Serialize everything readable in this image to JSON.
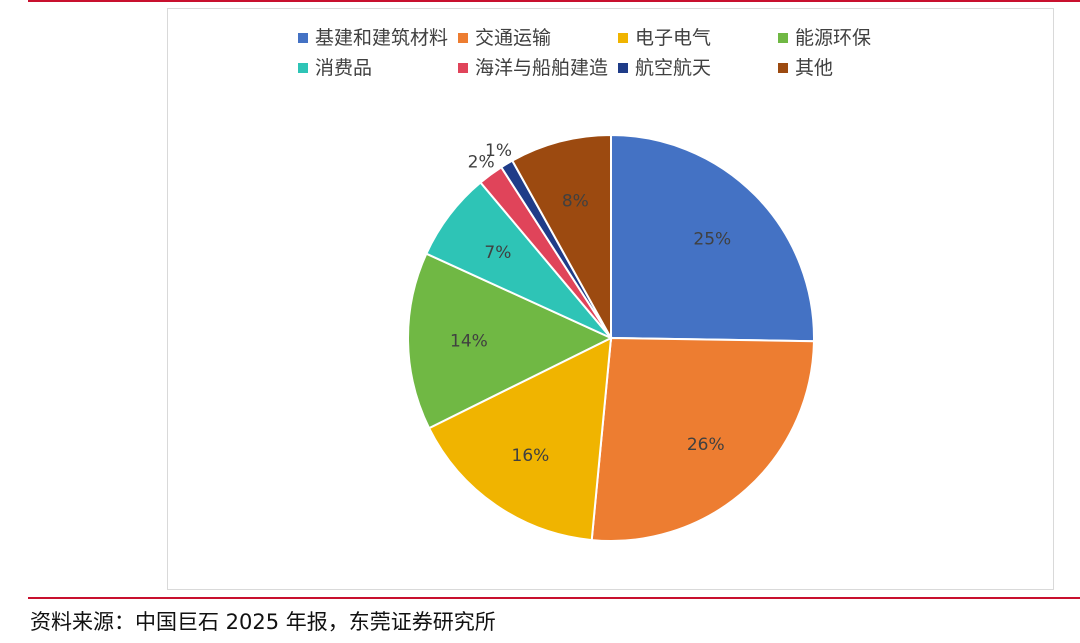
{
  "chart_data": {
    "type": "pie",
    "categories": [
      "基建和建筑材料",
      "交通运输",
      "电子电气",
      "能源环保",
      "消费品",
      "海洋与船舶建造",
      "航空航天",
      "其他"
    ],
    "values": [
      25,
      26,
      16,
      14,
      7,
      2,
      1,
      8
    ],
    "value_labels": [
      "25%",
      "26%",
      "16%",
      "14%",
      "7%",
      "2%",
      "1%",
      "8%"
    ],
    "colors": [
      "#4472c4",
      "#ed7d31",
      "#f0b400",
      "#70b844",
      "#2ec4b6",
      "#e0445a",
      "#1f3c88",
      "#9c4a10"
    ],
    "legend_position": "top"
  },
  "footer": {
    "source": "资料来源：中国巨石 2025 年报，东莞证券研究所"
  },
  "colors": {
    "rule": "#c8102e"
  }
}
